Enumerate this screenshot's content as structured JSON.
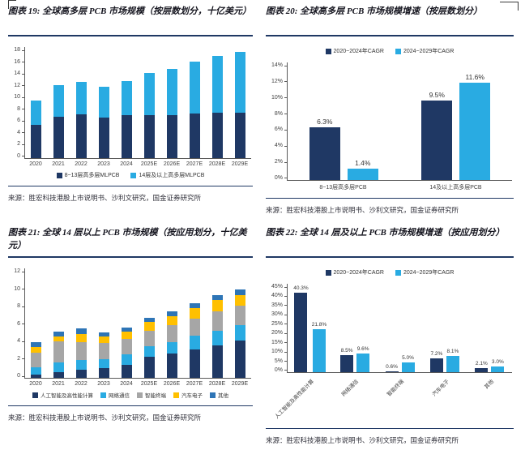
{
  "figures": [
    {
      "id": "fig19",
      "title": "图表 19: 全球高多层 PCB 市场规模（按层数划分，十亿美元）",
      "source": "来源：胜宏科技港股上市说明书、沙利文研究，国金证券研究所"
    },
    {
      "id": "fig20",
      "title": "图表 20: 全球高多层 PCB 市场规模增速（按层数划分）",
      "source": "来源：胜宏科技港股上市说明书、沙利文研究，国金证券研究所"
    },
    {
      "id": "fig21",
      "title": "图表 21: 全球 14 层以上 PCB 市场规模（按应用划分，十亿美元）",
      "source": "来源：胜宏科技港股上市说明书、沙利文研究，国金证券研究所"
    },
    {
      "id": "fig22",
      "title": "图表 22: 全球 14 层及以上 PCB 市场规模增速（按应用划分）",
      "source": "来源：胜宏科技港股上市说明书、沙利文研究，国金证券研究所"
    }
  ],
  "colors": {
    "navy": "#1F3864",
    "light_blue": "#29ABE2",
    "gray": "#A6A6A6",
    "gold": "#FFC000",
    "mid_blue": "#2E75B6",
    "rule": "#1F3864"
  },
  "chart_data": [
    {
      "id": "fig19",
      "type": "bar",
      "stacked": true,
      "title": "全球高多层PCB市场规模（按层数划分，十亿美元）",
      "categories": [
        "2020",
        "2021",
        "2022",
        "2023",
        "2024",
        "2025E",
        "2026E",
        "2027E",
        "2028E",
        "2029E"
      ],
      "series": [
        {
          "name": "8~13层高多层MLPCB",
          "color": "#1F3864",
          "values": [
            5.4,
            6.7,
            7.1,
            6.6,
            6.9,
            7.0,
            7.0,
            7.2,
            7.3,
            7.3
          ]
        },
        {
          "name": "14层及以上高多层MLPCB",
          "color": "#29ABE2",
          "values": [
            3.9,
            5.1,
            5.3,
            5.0,
            5.6,
            6.8,
            7.5,
            8.4,
            9.3,
            9.9
          ]
        }
      ],
      "ylim": [
        0,
        18
      ],
      "ytick_step": 2,
      "y_suffix": "",
      "grid": false,
      "legend_position": "bottom"
    },
    {
      "id": "fig20",
      "type": "bar",
      "stacked": false,
      "title": "全球高多层PCB市场规模增速（按层数划分）",
      "categories": [
        "8~13层高多层PCB",
        "14及以上高多层PCB"
      ],
      "series": [
        {
          "name": "2020~2024年CAGR",
          "color": "#1F3864",
          "values": [
            6.3,
            9.5
          ]
        },
        {
          "name": "2024~2029年CAGR",
          "color": "#29ABE2",
          "values": [
            1.4,
            11.6
          ]
        }
      ],
      "labels": [
        [
          "6.3%",
          "9.5%"
        ],
        [
          "1.4%",
          "11.6%"
        ]
      ],
      "ylim": [
        0,
        14
      ],
      "ytick_step": 2,
      "y_suffix": "%",
      "grid": false,
      "legend_position": "top"
    },
    {
      "id": "fig21",
      "type": "bar",
      "stacked": true,
      "title": "全球14层以上PCB市场规模（按应用划分，十亿美元）",
      "categories": [
        "2020",
        "2021",
        "2022",
        "2023",
        "2024",
        "2025E",
        "2026E",
        "2027E",
        "2028E",
        "2029E"
      ],
      "series": [
        {
          "name": "人工智能及高性能计算",
          "color": "#1F3864",
          "values": [
            0.4,
            0.65,
            0.9,
            1.05,
            1.45,
            2.3,
            2.65,
            3.1,
            3.55,
            4.05
          ]
        },
        {
          "name": "网络通信",
          "color": "#29ABE2",
          "values": [
            0.75,
            1.0,
            1.05,
            1.0,
            1.15,
            1.15,
            1.3,
            1.5,
            1.65,
            1.7
          ]
        },
        {
          "name": "智能终端",
          "color": "#A6A6A6",
          "values": [
            1.6,
            2.35,
            2.0,
            1.75,
            1.7,
            1.75,
            1.8,
            1.85,
            2.1,
            2.15
          ]
        },
        {
          "name": "汽车电子",
          "color": "#FFC000",
          "values": [
            0.65,
            0.5,
            0.85,
            0.75,
            0.75,
            0.9,
            1.05,
            1.2,
            1.25,
            1.15
          ]
        },
        {
          "name": "其他",
          "color": "#2E75B6",
          "values": [
            0.5,
            0.55,
            0.6,
            0.45,
            0.5,
            0.45,
            0.5,
            0.55,
            0.55,
            0.6
          ]
        }
      ],
      "ylim": [
        0,
        12
      ],
      "ytick_step": 2,
      "y_suffix": "",
      "grid": false,
      "legend_position": "bottom"
    },
    {
      "id": "fig22",
      "type": "bar",
      "stacked": false,
      "title": "全球14层及以上PCB市场规模增速（按应用划分）",
      "categories": [
        "人工智能及高性能计算",
        "网络通信",
        "智能终端",
        "汽车电子",
        "其他"
      ],
      "series": [
        {
          "name": "2020~2024年CAGR",
          "color": "#1F3864",
          "values": [
            40.3,
            8.5,
            0.6,
            7.2,
            2.1
          ]
        },
        {
          "name": "2024~2029年CAGR",
          "color": "#29ABE2",
          "values": [
            21.8,
            9.6,
            5.0,
            8.1,
            3.0
          ]
        }
      ],
      "labels": [
        [
          "40.3%",
          "8.5%",
          "0.6%",
          "7.2%",
          "2.1%"
        ],
        [
          "21.8%",
          "9.6%",
          "5.0%",
          "8.1%",
          "3.0%"
        ]
      ],
      "ylim": [
        0,
        45
      ],
      "ytick_step": 5,
      "y_suffix": "%",
      "grid": false,
      "legend_position": "top",
      "x_label_rotate": -45
    }
  ]
}
